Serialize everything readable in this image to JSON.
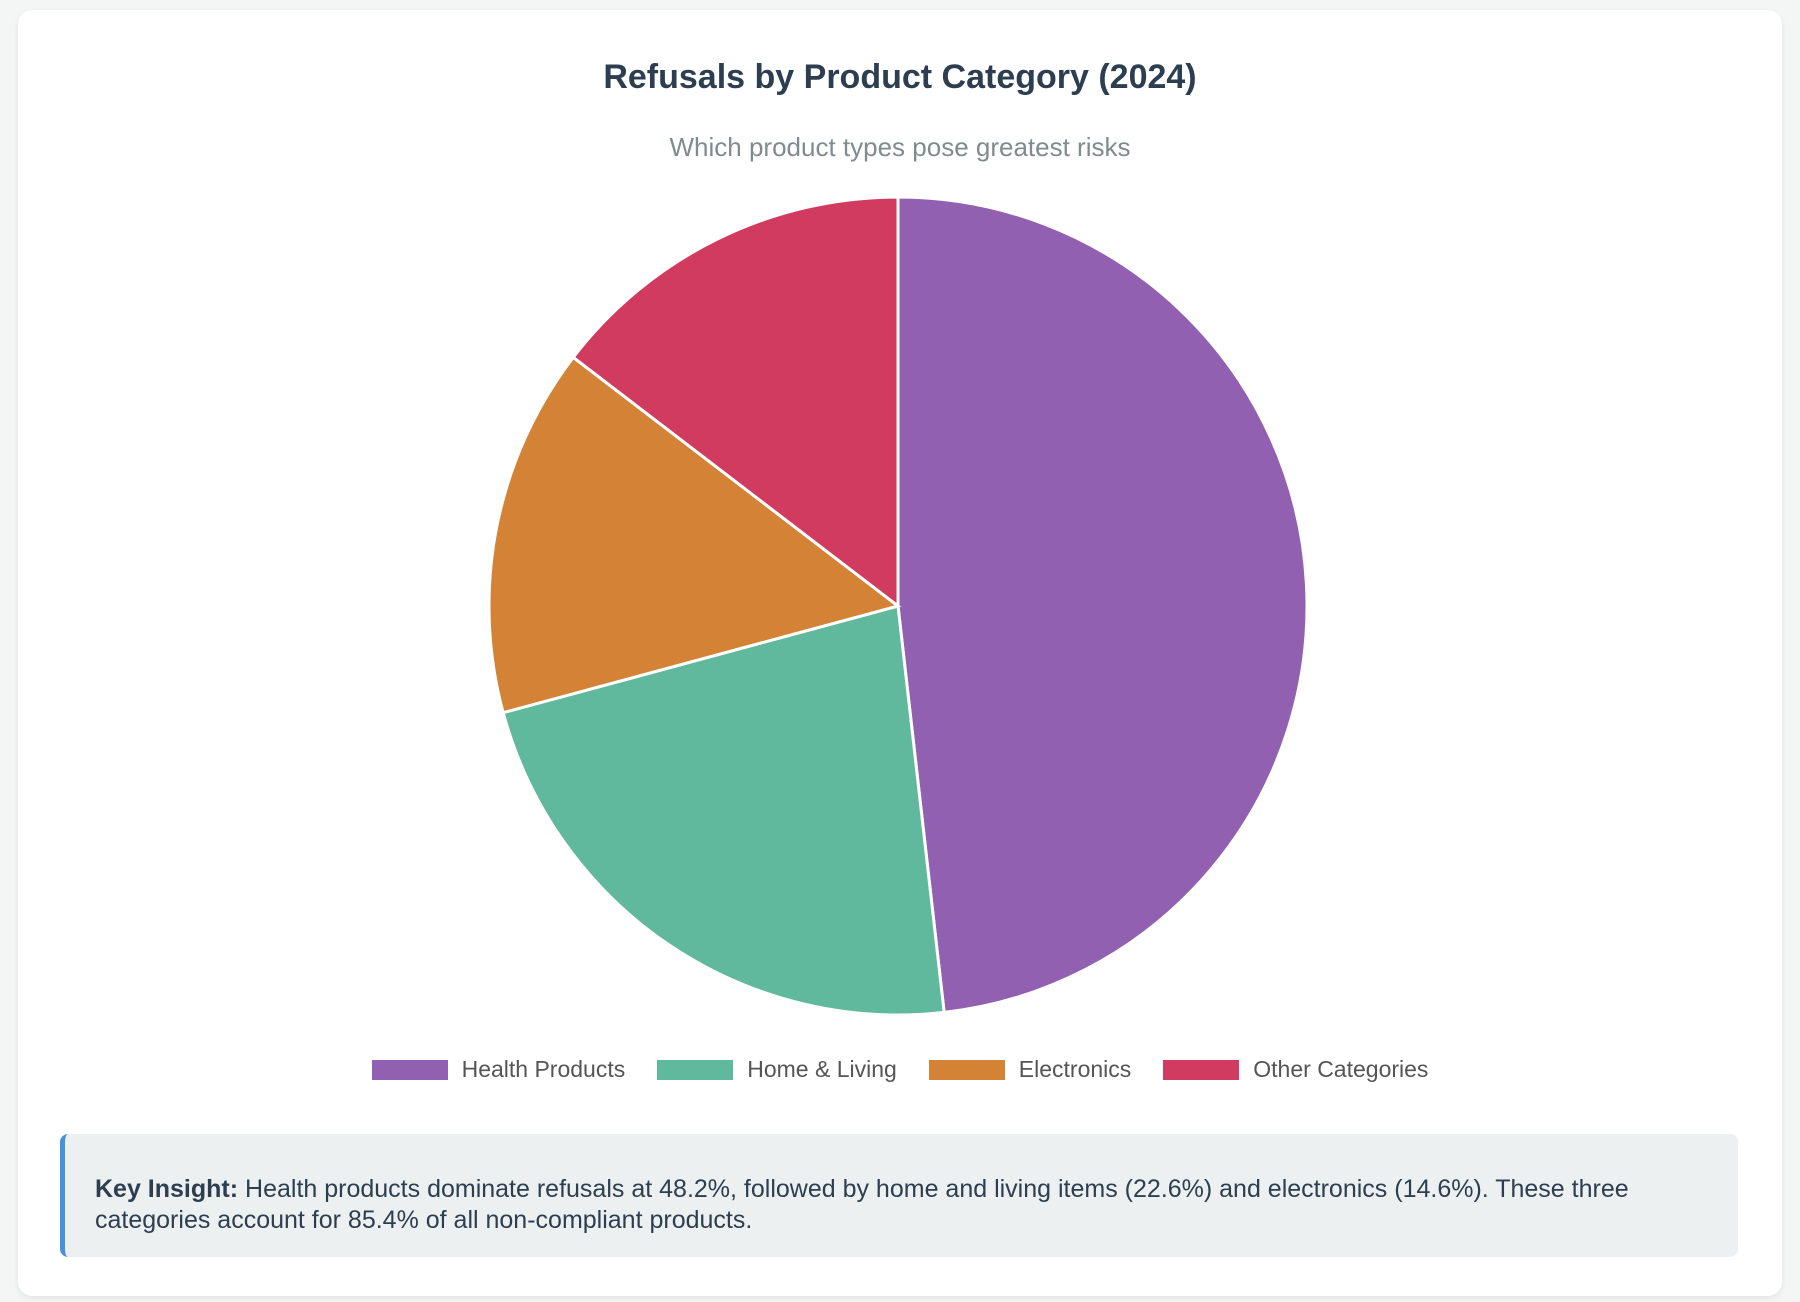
{
  "chart_data": {
    "type": "pie",
    "title": "Refusals by Product Category (2024)",
    "subtitle": "Which product types pose greatest risks",
    "categories": [
      "Health Products",
      "Home & Living",
      "Electronics",
      "Other Categories"
    ],
    "values": [
      48.2,
      22.6,
      14.6,
      14.6
    ],
    "colors": [
      "#9160b0",
      "#60b99c",
      "#d38236",
      "#d03b5f"
    ],
    "legend_position": "bottom"
  },
  "insight": {
    "label": "Key Insight:",
    "text": " Health products dominate refusals at 48.2%, followed by home and living items (22.6%) and electronics (14.6%). These three categories account for 85.4% of all non-compliant products."
  }
}
